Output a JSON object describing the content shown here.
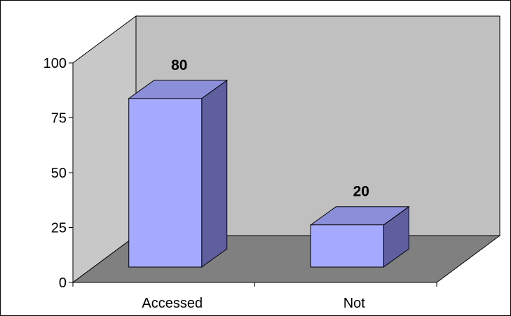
{
  "chart_data": {
    "type": "bar",
    "style": "3d-column",
    "categories": [
      "Accessed",
      "Not"
    ],
    "values": [
      80,
      20
    ],
    "data_labels": [
      "80",
      "20"
    ],
    "y_ticks": [
      "0",
      "25",
      "50",
      "75",
      "100"
    ],
    "ylim": [
      0,
      100
    ],
    "title": "",
    "xlabel": "",
    "ylabel": "",
    "grid": false,
    "legend": "none",
    "colors": {
      "bar_front": "#a6aaff",
      "bar_top": "#8b8fd9",
      "bar_side": "#5f5f9f",
      "back_wall": "#c0c0c0",
      "side_wall": "#c8c8c8",
      "floor": "#808080",
      "frame": "#000000"
    }
  }
}
